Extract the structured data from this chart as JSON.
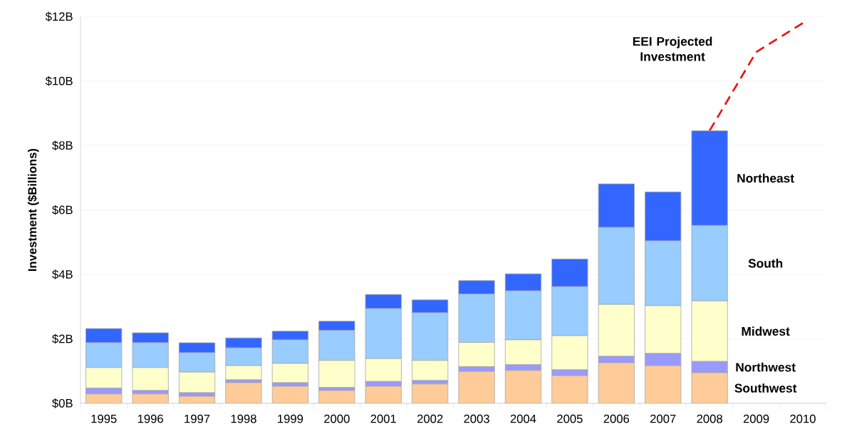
{
  "chart_data": {
    "type": "bar",
    "stacked": true,
    "ylabel": "Investment ($Billions)",
    "categories": [
      "1995",
      "1996",
      "1997",
      "1998",
      "1999",
      "2000",
      "2001",
      "2002",
      "2003",
      "2004",
      "2005",
      "2006",
      "2007",
      "2008",
      "2009",
      "2010"
    ],
    "series": [
      {
        "name": "Southwest",
        "color": "#ffcc99",
        "values": [
          0.29,
          0.29,
          0.22,
          0.64,
          0.53,
          0.4,
          0.53,
          0.6,
          0.99,
          1.02,
          0.86,
          1.26,
          1.17,
          0.95,
          null,
          null
        ]
      },
      {
        "name": "Northwest",
        "color": "#9999ff",
        "values": [
          0.18,
          0.11,
          0.11,
          0.09,
          0.11,
          0.09,
          0.15,
          0.11,
          0.15,
          0.18,
          0.18,
          0.2,
          0.38,
          0.35,
          null,
          null
        ]
      },
      {
        "name": "Midwest",
        "color": "#ffffcc",
        "values": [
          0.64,
          0.71,
          0.64,
          0.44,
          0.6,
          0.84,
          0.71,
          0.62,
          0.75,
          0.77,
          1.06,
          1.61,
          1.48,
          1.88,
          null,
          null
        ]
      },
      {
        "name": "South",
        "color": "#99ccff",
        "values": [
          0.77,
          0.77,
          0.6,
          0.55,
          0.73,
          0.93,
          1.55,
          1.48,
          1.5,
          1.52,
          1.52,
          2.39,
          2.01,
          2.34,
          null,
          null
        ]
      },
      {
        "name": "Northeast",
        "color": "#3366ff",
        "values": [
          0.44,
          0.31,
          0.31,
          0.31,
          0.27,
          0.29,
          0.44,
          0.4,
          0.42,
          0.53,
          0.86,
          1.35,
          1.52,
          2.94,
          null,
          null
        ]
      },
      {
        "name": "EEI Projected Investment",
        "type": "line",
        "color": "#ee1111",
        "values": [
          null,
          null,
          null,
          null,
          null,
          null,
          null,
          null,
          null,
          null,
          null,
          null,
          null,
          8.46,
          10.9,
          11.8
        ]
      }
    ],
    "line_style": "dashed",
    "ylim": [
      0,
      12
    ],
    "yticks": [
      {
        "value": 0,
        "label": "$0B"
      },
      {
        "value": 2,
        "label": "$2B"
      },
      {
        "value": 4,
        "label": "$4B"
      },
      {
        "value": 6,
        "label": "$6B"
      },
      {
        "value": 8,
        "label": "$8B"
      },
      {
        "value": 10,
        "label": "$10B"
      },
      {
        "value": 12,
        "label": "$12B"
      }
    ],
    "grid": "y"
  }
}
